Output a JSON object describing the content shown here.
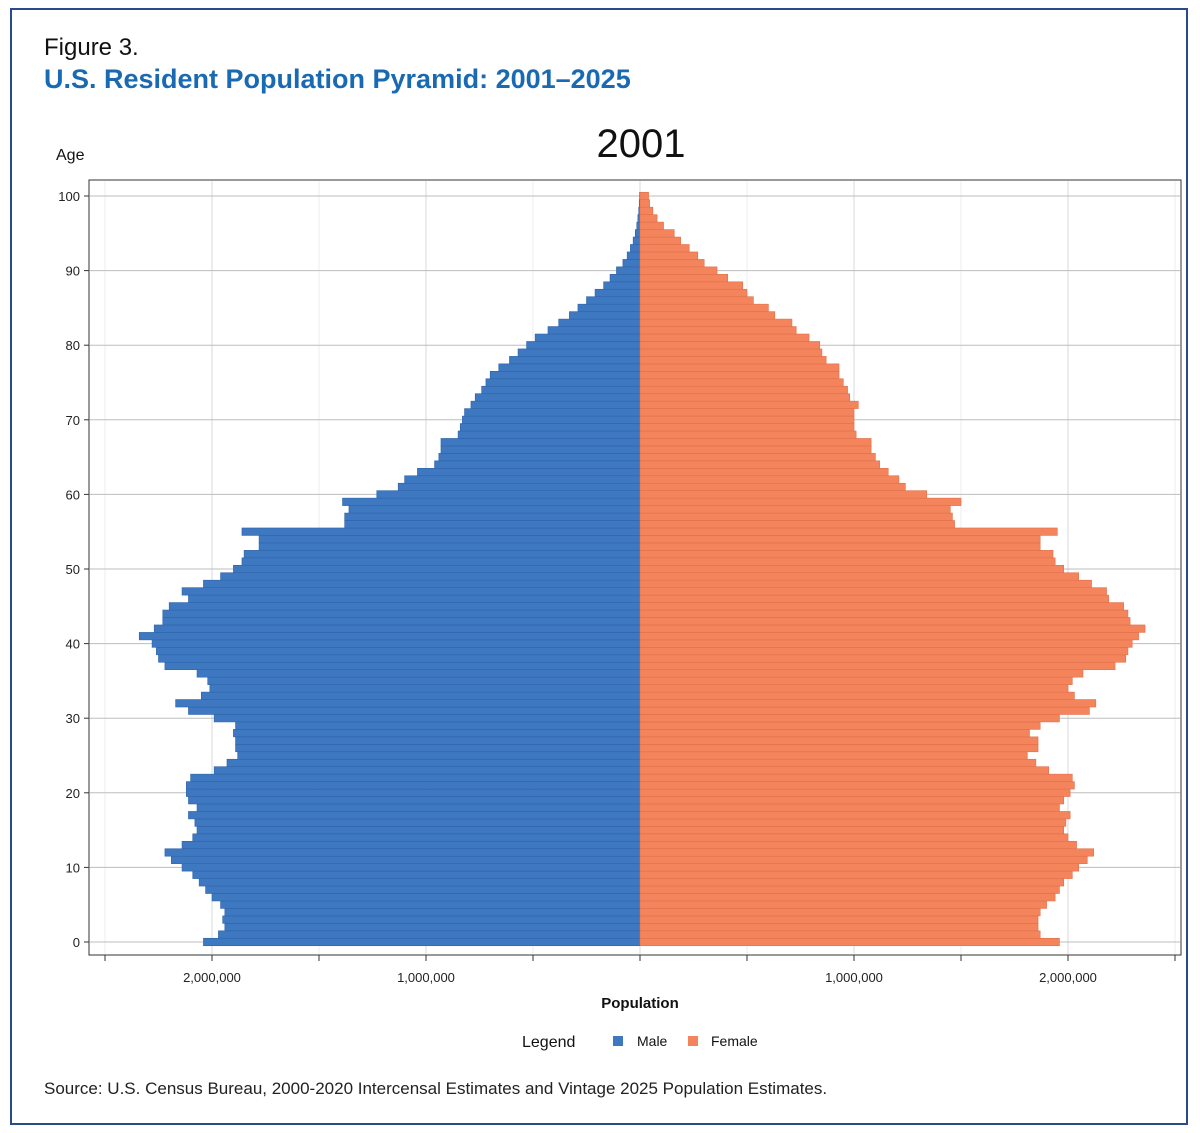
{
  "figure": {
    "label": "Figure 3.",
    "title": "U.S. Resident Population Pyramid: 2001–2025",
    "source": "Source: U.S. Census Bureau, 2000-2020 Intercensal Estimates and Vintage 2025 Population Estimates."
  },
  "chart_data": {
    "type": "bar",
    "orientation": "horizontal-pyramid",
    "title": "2001",
    "ylabel": "Age",
    "xlabel": "Population",
    "legend": {
      "title": "Legend",
      "position": "bottom"
    },
    "age_ticks": [
      0,
      10,
      20,
      30,
      40,
      50,
      60,
      70,
      80,
      90,
      100
    ],
    "pop_tick_labels": [
      {
        "value": -2000000,
        "label": "2,000,000"
      },
      {
        "value": -1000000,
        "label": "1,000,000"
      },
      {
        "value": 1000000,
        "label": "1,000,000"
      },
      {
        "value": 2000000,
        "label": "2,000,000"
      }
    ],
    "xlim": [
      -2500000,
      2500000
    ],
    "ylim": [
      0,
      100
    ],
    "grid": true,
    "colors": {
      "male": "#3d78c0",
      "female": "#f4845c"
    },
    "ages": [
      0,
      1,
      2,
      3,
      4,
      5,
      6,
      7,
      8,
      9,
      10,
      11,
      12,
      13,
      14,
      15,
      16,
      17,
      18,
      19,
      20,
      21,
      22,
      23,
      24,
      25,
      26,
      27,
      28,
      29,
      30,
      31,
      32,
      33,
      34,
      35,
      36,
      37,
      38,
      39,
      40,
      41,
      42,
      43,
      44,
      45,
      46,
      47,
      48,
      49,
      50,
      51,
      52,
      53,
      54,
      55,
      56,
      57,
      58,
      59,
      60,
      61,
      62,
      63,
      64,
      65,
      66,
      67,
      68,
      69,
      70,
      71,
      72,
      73,
      74,
      75,
      76,
      77,
      78,
      79,
      80,
      81,
      82,
      83,
      84,
      85,
      86,
      87,
      88,
      89,
      90,
      91,
      92,
      93,
      94,
      95,
      96,
      97,
      98,
      99,
      100
    ],
    "series": [
      {
        "name": "Male",
        "values": [
          2040000,
          1970000,
          1940000,
          1950000,
          1940000,
          1960000,
          2000000,
          2030000,
          2060000,
          2090000,
          2140000,
          2190000,
          2220000,
          2140000,
          2090000,
          2070000,
          2080000,
          2110000,
          2070000,
          2110000,
          2120000,
          2120000,
          2100000,
          1990000,
          1930000,
          1880000,
          1890000,
          1890000,
          1900000,
          1890000,
          1990000,
          2110000,
          2170000,
          2050000,
          2010000,
          2020000,
          2070000,
          2220000,
          2250000,
          2260000,
          2280000,
          2340000,
          2270000,
          2230000,
          2230000,
          2200000,
          2110000,
          2140000,
          2040000,
          1960000,
          1900000,
          1860000,
          1850000,
          1780000,
          1780000,
          1860000,
          1380000,
          1380000,
          1360000,
          1390000,
          1230000,
          1130000,
          1100000,
          1040000,
          960000,
          940000,
          930000,
          930000,
          850000,
          840000,
          830000,
          820000,
          790000,
          770000,
          740000,
          720000,
          700000,
          660000,
          610000,
          570000,
          530000,
          490000,
          430000,
          380000,
          330000,
          290000,
          250000,
          210000,
          170000,
          140000,
          110000,
          80000,
          60000,
          45000,
          32000,
          22000,
          15000,
          10000,
          6000,
          3500,
          2000
        ]
      },
      {
        "name": "Female",
        "values": [
          1960000,
          1870000,
          1860000,
          1860000,
          1870000,
          1900000,
          1940000,
          1960000,
          1980000,
          2020000,
          2050000,
          2090000,
          2120000,
          2040000,
          2000000,
          1980000,
          1990000,
          2010000,
          1960000,
          1980000,
          2010000,
          2030000,
          2020000,
          1910000,
          1850000,
          1810000,
          1860000,
          1860000,
          1820000,
          1870000,
          1960000,
          2100000,
          2130000,
          2030000,
          2000000,
          2020000,
          2070000,
          2220000,
          2270000,
          2280000,
          2300000,
          2330000,
          2360000,
          2290000,
          2280000,
          2260000,
          2190000,
          2180000,
          2110000,
          2050000,
          1980000,
          1940000,
          1930000,
          1870000,
          1870000,
          1950000,
          1470000,
          1460000,
          1450000,
          1500000,
          1340000,
          1240000,
          1210000,
          1160000,
          1120000,
          1100000,
          1080000,
          1080000,
          1010000,
          1000000,
          1000000,
          1000000,
          1020000,
          980000,
          970000,
          950000,
          930000,
          930000,
          870000,
          850000,
          840000,
          790000,
          730000,
          710000,
          630000,
          600000,
          530000,
          500000,
          480000,
          410000,
          360000,
          300000,
          270000,
          230000,
          190000,
          160000,
          110000,
          80000,
          60000,
          45000,
          40000
        ]
      }
    ]
  }
}
